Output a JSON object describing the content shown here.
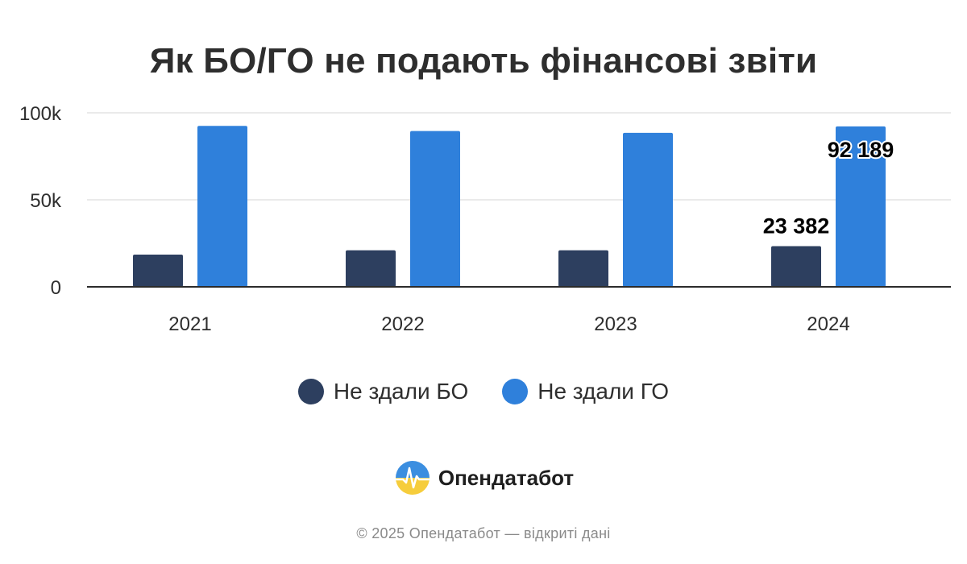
{
  "title": "Як БО/ГО не подають фінансові звіти",
  "colors": {
    "bo": "#2d3f5f",
    "go": "#2f80db",
    "grid": "#e3e3e3",
    "axis": "#2b2b2b"
  },
  "legend": [
    {
      "label": "Не здали БО",
      "color": "#2d3f5f"
    },
    {
      "label": "Не здали ГО",
      "color": "#2f80db"
    }
  ],
  "brand": {
    "name": "Опендатабот",
    "logo_icon": "opendatabot-logo-icon"
  },
  "footer": "© 2025 Опендатабот — відкриті дані",
  "chart_data": {
    "type": "bar",
    "categories": [
      "2021",
      "2022",
      "2023",
      "2024"
    ],
    "series": [
      {
        "name": "Не здали БО",
        "values": [
          18500,
          21000,
          21000,
          23382
        ]
      },
      {
        "name": "Не здали ГО",
        "values": [
          92500,
          89500,
          88500,
          92189
        ]
      }
    ],
    "ylim": [
      0,
      100000
    ],
    "yticks": [
      {
        "value": 0,
        "label": "0"
      },
      {
        "value": 50000,
        "label": "50k"
      },
      {
        "value": 100000,
        "label": "100k"
      }
    ],
    "data_labels": [
      {
        "series": 0,
        "category": "2024",
        "text": "23 382"
      },
      {
        "series": 1,
        "category": "2024",
        "text": "92 189"
      }
    ],
    "grid": true,
    "legend_position": "bottom"
  }
}
